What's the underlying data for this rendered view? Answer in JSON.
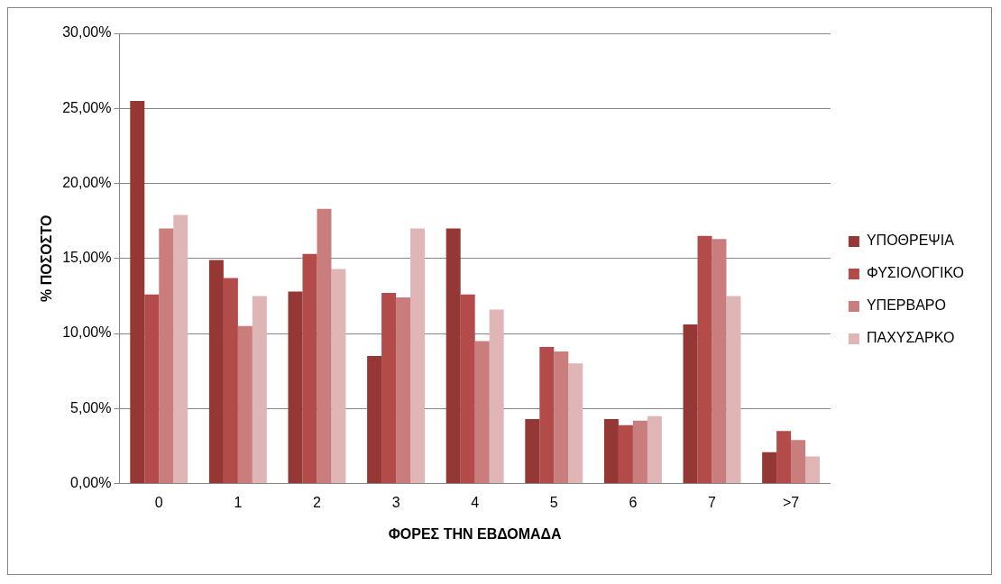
{
  "chart_data": {
    "type": "bar",
    "xlabel": "ΦΟΡΕΣ ΤΗΝ ΕΒΔΟΜΑΔΑ",
    "ylabel": "% ΠΟΣΟΣΤΟ",
    "categories": [
      "0",
      "1",
      "2",
      "3",
      "4",
      "5",
      "6",
      "7",
      ">7"
    ],
    "series": [
      {
        "name": "ΥΠΟΘΡΕΨΙΑ",
        "color": "#953735",
        "values": [
          25.5,
          14.9,
          12.8,
          8.5,
          17.0,
          4.3,
          4.3,
          10.6,
          2.1
        ]
      },
      {
        "name": "ΦΥΣΙΟΛΟΓΙΚΟ",
        "color": "#b34b4a",
        "values": [
          12.6,
          13.7,
          15.3,
          12.7,
          12.6,
          9.1,
          3.9,
          16.5,
          3.5
        ]
      },
      {
        "name": "ΥΠΕΡΒΑΡΟ",
        "color": "#c97d7c",
        "values": [
          17.0,
          10.5,
          18.3,
          12.4,
          9.5,
          8.8,
          4.2,
          16.3,
          2.9
        ]
      },
      {
        "name": "ΠΑΧΥΣΑΡΚΟ",
        "color": "#dfb5b5",
        "values": [
          17.9,
          12.5,
          14.3,
          17.0,
          11.6,
          8.0,
          4.5,
          12.5,
          1.8
        ]
      }
    ],
    "ylim": [
      0,
      30
    ],
    "yticks": [
      {
        "value": 0,
        "label": "0,00%"
      },
      {
        "value": 5,
        "label": "5,00%"
      },
      {
        "value": 10,
        "label": "10,00%"
      },
      {
        "value": 15,
        "label": "15,00%"
      },
      {
        "value": 20,
        "label": "20,00%"
      },
      {
        "value": 25,
        "label": "25,00%"
      },
      {
        "value": 30,
        "label": "30,00%"
      }
    ],
    "grid": "y",
    "legend": "right"
  }
}
